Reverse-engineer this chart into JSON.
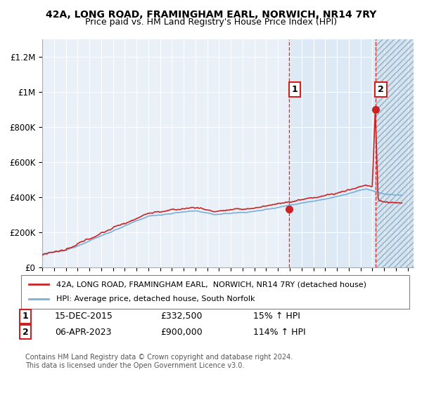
{
  "title": "42A, LONG ROAD, FRAMINGHAM EARL, NORWICH, NR14 7RY",
  "subtitle": "Price paid vs. HM Land Registry's House Price Index (HPI)",
  "ylabel_ticks": [
    "£0",
    "£200K",
    "£400K",
    "£600K",
    "£800K",
    "£1M",
    "£1.2M"
  ],
  "ytick_values": [
    0,
    200000,
    400000,
    600000,
    800000,
    1000000,
    1200000
  ],
  "ylim": [
    0,
    1300000
  ],
  "xlim_start": 1995.0,
  "xlim_end": 2026.5,
  "hpi_color": "#7bafd4",
  "price_color": "#cc2222",
  "dashed_line_color": "#cc2222",
  "background_color": "#ffffff",
  "plot_bg_color": "#eaf0f8",
  "blue_shade_start": 2015.96,
  "hatch_start": 2023.27,
  "marker1_date": 2015.96,
  "marker1_value": 332500,
  "marker2_date": 2023.27,
  "marker2_value": 900000,
  "legend_label1": "42A, LONG ROAD, FRAMINGHAM EARL,  NORWICH, NR14 7RY (detached house)",
  "legend_label2": "HPI: Average price, detached house, South Norfolk",
  "note1_num": "1",
  "note1_date": "15-DEC-2015",
  "note1_price": "£332,500",
  "note1_hpi": "15% ↑ HPI",
  "note2_num": "2",
  "note2_date": "06-APR-2023",
  "note2_price": "£900,000",
  "note2_hpi": "114% ↑ HPI",
  "footer": "Contains HM Land Registry data © Crown copyright and database right 2024.\nThis data is licensed under the Open Government Licence v3.0."
}
